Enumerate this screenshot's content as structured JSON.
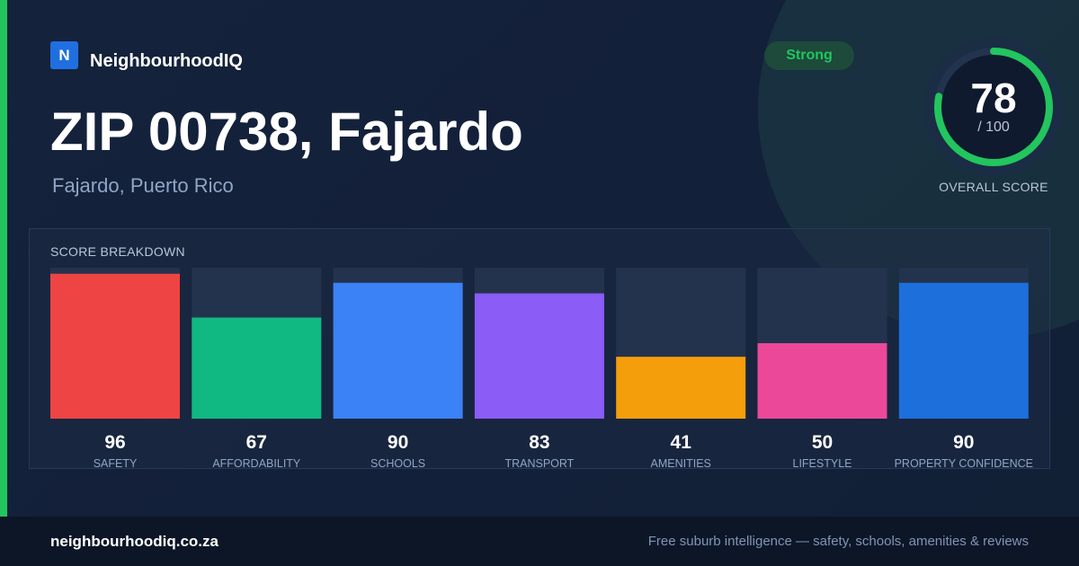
{
  "brand": {
    "logo_letter": "N",
    "name": "NeighbourhoodIQ"
  },
  "header": {
    "title": "ZIP 00738, Fajardo",
    "subtitle": "Fajardo, Puerto Rico",
    "badge": "Strong"
  },
  "overall": {
    "score": "78",
    "max_label": "/ 100",
    "label": "OVERALL SCORE",
    "fraction": 0.78
  },
  "breakdown": {
    "title": "SCORE BREAKDOWN"
  },
  "chart_data": {
    "type": "bar",
    "categories": [
      "SAFETY",
      "AFFORDABILITY",
      "SCHOOLS",
      "TRANSPORT",
      "AMENITIES",
      "LIFESTYLE",
      "PROPERTY CONFIDENCE"
    ],
    "values": [
      96,
      67,
      90,
      83,
      41,
      50,
      90
    ],
    "ylim": [
      0,
      100
    ],
    "colors": [
      "#ef4444",
      "#10b981",
      "#3b82f6",
      "#8b5cf6",
      "#f59e0b",
      "#ec4899",
      "#1d6fdc"
    ],
    "title": "",
    "xlabel": "",
    "ylabel": ""
  },
  "colors": {
    "accent": "#22c55e",
    "ring_track": "#22334d",
    "bar_track": "#24334d"
  },
  "footer": {
    "domain": "neighbourhoodiq.co.za",
    "tagline": "Free suburb intelligence — safety, schools, amenities & reviews"
  }
}
